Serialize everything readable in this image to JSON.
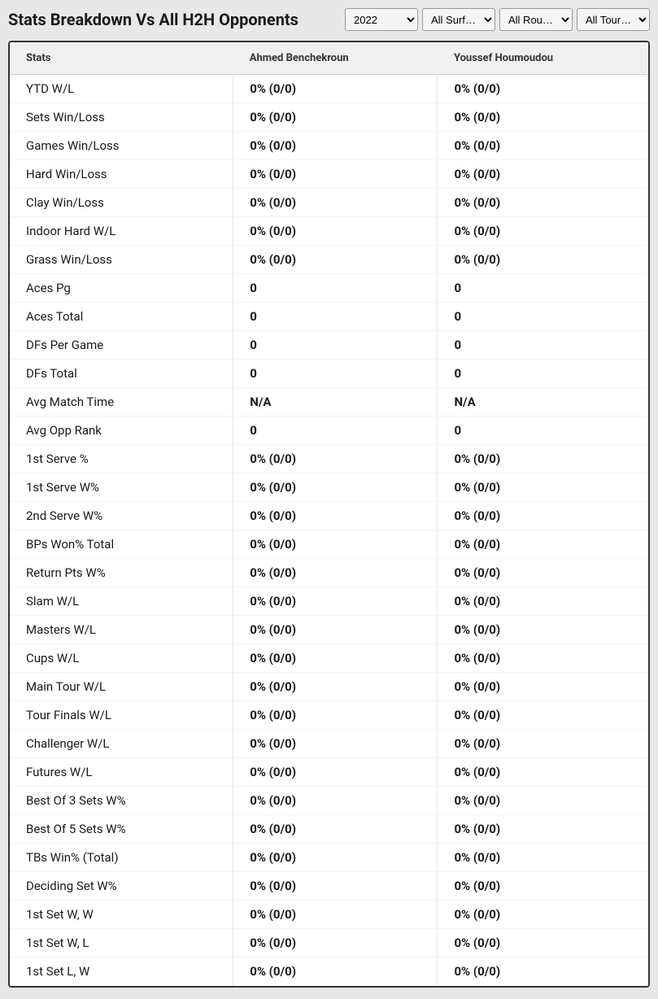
{
  "title": "Stats Breakdown Vs All H2H Opponents",
  "filters": {
    "year": "2022",
    "surface": "All Surf…",
    "round": "All Rou…",
    "tour": "All Tour…"
  },
  "table": {
    "headers": {
      "stats": "Stats",
      "player1": "Ahmed Benchekroun",
      "player2": "Youssef Houmoudou"
    },
    "rows": [
      {
        "stat": "YTD W/L",
        "p1": "0% (0/0)",
        "p2": "0% (0/0)"
      },
      {
        "stat": "Sets Win/Loss",
        "p1": "0% (0/0)",
        "p2": "0% (0/0)"
      },
      {
        "stat": "Games Win/Loss",
        "p1": "0% (0/0)",
        "p2": "0% (0/0)"
      },
      {
        "stat": "Hard Win/Loss",
        "p1": "0% (0/0)",
        "p2": "0% (0/0)"
      },
      {
        "stat": "Clay Win/Loss",
        "p1": "0% (0/0)",
        "p2": "0% (0/0)"
      },
      {
        "stat": "Indoor Hard W/L",
        "p1": "0% (0/0)",
        "p2": "0% (0/0)"
      },
      {
        "stat": "Grass Win/Loss",
        "p1": "0% (0/0)",
        "p2": "0% (0/0)"
      },
      {
        "stat": "Aces Pg",
        "p1": "0",
        "p2": "0"
      },
      {
        "stat": "Aces Total",
        "p1": "0",
        "p2": "0"
      },
      {
        "stat": "DFs Per Game",
        "p1": "0",
        "p2": "0"
      },
      {
        "stat": "DFs Total",
        "p1": "0",
        "p2": "0"
      },
      {
        "stat": "Avg Match Time",
        "p1": "N/A",
        "p2": "N/A"
      },
      {
        "stat": "Avg Opp Rank",
        "p1": "0",
        "p2": "0"
      },
      {
        "stat": "1st Serve %",
        "p1": "0% (0/0)",
        "p2": "0% (0/0)"
      },
      {
        "stat": "1st Serve W%",
        "p1": "0% (0/0)",
        "p2": "0% (0/0)"
      },
      {
        "stat": "2nd Serve W%",
        "p1": "0% (0/0)",
        "p2": "0% (0/0)"
      },
      {
        "stat": "BPs Won% Total",
        "p1": "0% (0/0)",
        "p2": "0% (0/0)"
      },
      {
        "stat": "Return Pts W%",
        "p1": "0% (0/0)",
        "p2": "0% (0/0)"
      },
      {
        "stat": "Slam W/L",
        "p1": "0% (0/0)",
        "p2": "0% (0/0)"
      },
      {
        "stat": "Masters W/L",
        "p1": "0% (0/0)",
        "p2": "0% (0/0)"
      },
      {
        "stat": "Cups W/L",
        "p1": "0% (0/0)",
        "p2": "0% (0/0)"
      },
      {
        "stat": "Main Tour W/L",
        "p1": "0% (0/0)",
        "p2": "0% (0/0)"
      },
      {
        "stat": "Tour Finals W/L",
        "p1": "0% (0/0)",
        "p2": "0% (0/0)"
      },
      {
        "stat": "Challenger W/L",
        "p1": "0% (0/0)",
        "p2": "0% (0/0)"
      },
      {
        "stat": "Futures W/L",
        "p1": "0% (0/0)",
        "p2": "0% (0/0)"
      },
      {
        "stat": "Best Of 3 Sets W%",
        "p1": "0% (0/0)",
        "p2": "0% (0/0)"
      },
      {
        "stat": "Best Of 5 Sets W%",
        "p1": "0% (0/0)",
        "p2": "0% (0/0)"
      },
      {
        "stat": "TBs Win% (Total)",
        "p1": "0% (0/0)",
        "p2": "0% (0/0)"
      },
      {
        "stat": "Deciding Set W%",
        "p1": "0% (0/0)",
        "p2": "0% (0/0)"
      },
      {
        "stat": "1st Set W, W",
        "p1": "0% (0/0)",
        "p2": "0% (0/0)"
      },
      {
        "stat": "1st Set W, L",
        "p1": "0% (0/0)",
        "p2": "0% (0/0)"
      },
      {
        "stat": "1st Set L, W",
        "p1": "0% (0/0)",
        "p2": "0% (0/0)"
      }
    ]
  },
  "styling": {
    "background_color": "#e8e8e8",
    "table_background": "#ffffff",
    "table_border": "#333333",
    "header_background": "#f0f0f0",
    "cell_border": "#e5e5e5",
    "text_color": "#1a1a1a",
    "title_fontsize": 20,
    "header_fontsize": 13,
    "cell_fontsize": 15
  }
}
